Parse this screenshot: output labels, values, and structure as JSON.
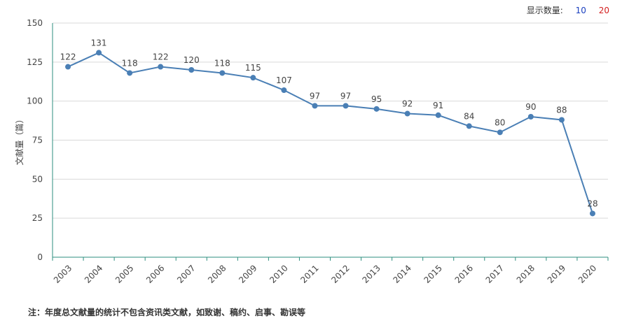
{
  "display_count": {
    "label": "显示数量:",
    "options": [
      {
        "label": "10",
        "color": "#1a3fbf"
      },
      {
        "label": "20",
        "color": "#d42020"
      }
    ]
  },
  "note": "注：年度总文献量的统计不包含资讯类文献，如致谢、稿约、启事、勘误等",
  "chart_data": {
    "type": "line",
    "title": "",
    "xlabel": "",
    "ylabel": "文献量（篇）",
    "categories": [
      "2003",
      "2004",
      "2005",
      "2006",
      "2007",
      "2008",
      "2009",
      "2010",
      "2011",
      "2012",
      "2013",
      "2014",
      "2015",
      "2016",
      "2017",
      "2018",
      "2019",
      "2020"
    ],
    "series": [
      {
        "name": "文献量",
        "values": [
          122,
          131,
          118,
          122,
          120,
          118,
          115,
          107,
          97,
          97,
          95,
          92,
          91,
          84,
          80,
          90,
          88,
          28
        ]
      }
    ],
    "ylim": [
      0,
      150
    ],
    "yticks": [
      0,
      25,
      50,
      75,
      100,
      125,
      150
    ],
    "grid": true,
    "colors": {
      "line": "#4a7fb5",
      "axis": "#2e8f7f",
      "grid": "#d9d9d9",
      "text": "#444444"
    }
  }
}
